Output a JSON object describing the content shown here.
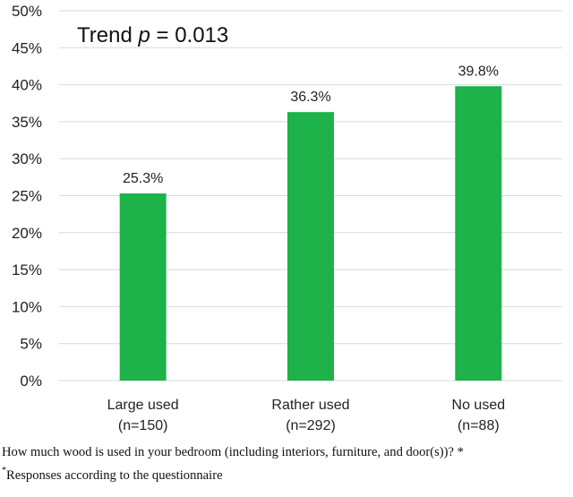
{
  "chart_data": {
    "type": "bar",
    "categories": [
      [
        "Large used",
        "(n=150)"
      ],
      [
        "Rather used",
        "(n=292)"
      ],
      [
        "No used",
        "(n=88)"
      ]
    ],
    "values": [
      25.3,
      36.3,
      39.8
    ],
    "value_labels": [
      "25.3%",
      "36.3%",
      "39.8%"
    ],
    "ylim": [
      0,
      50
    ],
    "yticks": [
      0,
      5,
      10,
      15,
      20,
      25,
      30,
      35,
      40,
      45,
      50
    ],
    "ytick_labels": [
      "0%",
      "5%",
      "10%",
      "15%",
      "20%",
      "25%",
      "30%",
      "35%",
      "40%",
      "45%",
      "50%"
    ],
    "grid": true,
    "bar_color": "#1db24a",
    "grid_color": "#d9d9d9",
    "annotation": {
      "prefix": "Trend ",
      "italic": "p",
      "suffix": " = 0.013"
    }
  },
  "caption": {
    "question": "How much wood is used in your bedroom (including interiors, furniture, and door(s))? *",
    "footnote_mark": "*",
    "footnote_text": "Responses according to the questionnaire"
  }
}
